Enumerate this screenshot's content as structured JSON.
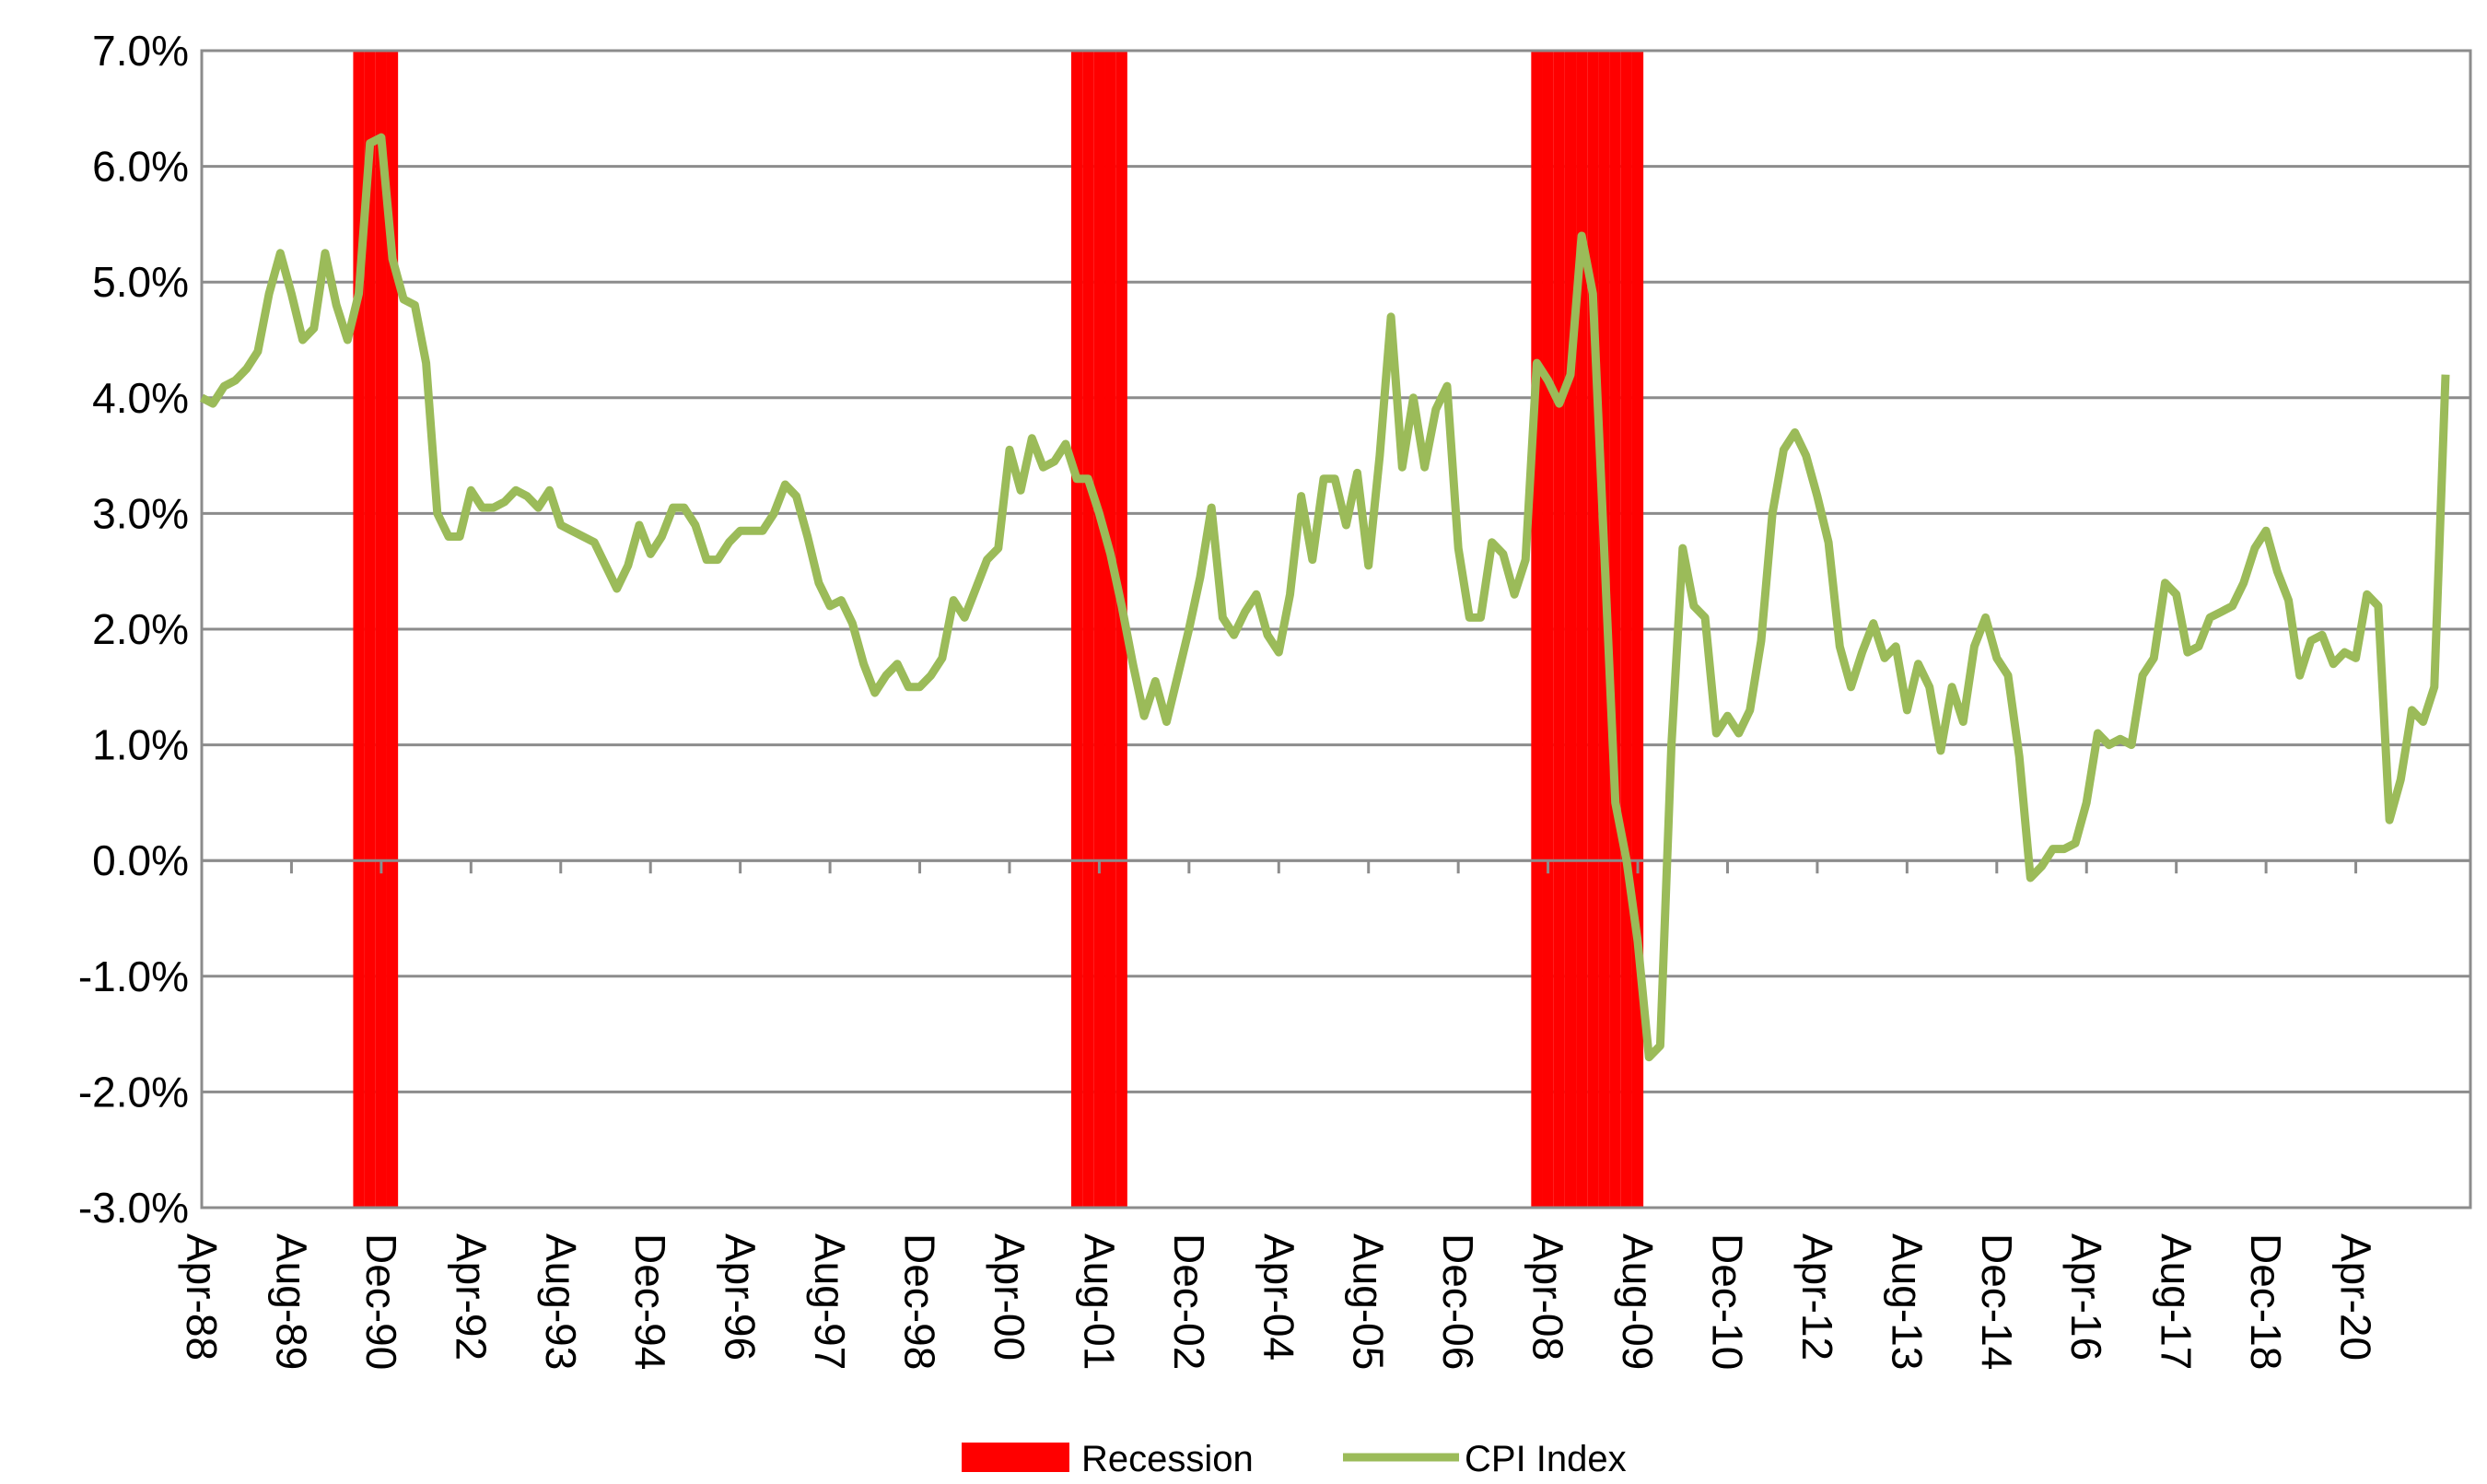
{
  "chart_data": {
    "type": "line",
    "categories": [
      "Apr-88",
      null,
      null,
      null,
      null,
      null,
      null,
      null,
      "Aug-89",
      null,
      null,
      null,
      null,
      null,
      null,
      null,
      "Dec-90",
      null,
      null,
      null,
      null,
      null,
      null,
      null,
      "Apr-92",
      null,
      null,
      null,
      null,
      null,
      null,
      null,
      "Aug-93",
      null,
      null,
      null,
      null,
      null,
      null,
      null,
      "Dec-94",
      null,
      null,
      null,
      null,
      null,
      null,
      null,
      "Apr-96",
      null,
      null,
      null,
      null,
      null,
      null,
      null,
      "Aug-97",
      null,
      null,
      null,
      null,
      null,
      null,
      null,
      "Dec-98",
      null,
      null,
      null,
      null,
      null,
      null,
      null,
      "Apr-00",
      null,
      null,
      null,
      null,
      null,
      null,
      null,
      "Aug-01",
      null,
      null,
      null,
      null,
      null,
      null,
      null,
      "Dec-02",
      null,
      null,
      null,
      null,
      null,
      null,
      null,
      "Apr-04",
      null,
      null,
      null,
      null,
      null,
      null,
      null,
      "Aug-05",
      null,
      null,
      null,
      null,
      null,
      null,
      null,
      "Dec-06",
      null,
      null,
      null,
      null,
      null,
      null,
      null,
      "Apr-08",
      null,
      null,
      null,
      null,
      null,
      null,
      null,
      "Aug-09",
      null,
      null,
      null,
      null,
      null,
      null,
      null,
      "Dec-10",
      null,
      null,
      null,
      null,
      null,
      null,
      null,
      "Apr-12",
      null,
      null,
      null,
      null,
      null,
      null,
      null,
      "Aug-13",
      null,
      null,
      null,
      null,
      null,
      null,
      null,
      "Dec-14",
      null,
      null,
      null,
      null,
      null,
      null,
      null,
      "Apr-16",
      null,
      null,
      null,
      null,
      null,
      null,
      null,
      "Aug-17",
      null,
      null,
      null,
      null,
      null,
      null,
      null,
      "Dec-18",
      null,
      null,
      null,
      null,
      null,
      null,
      null,
      "Apr-20",
      null,
      null,
      null,
      null,
      null,
      null,
      null,
      null
    ],
    "series": [
      {
        "name": "Recession",
        "type": "bar",
        "axis": "y2",
        "color": "#ff0000",
        "values": [
          0,
          0,
          0,
          0,
          0,
          0,
          0,
          0,
          0,
          0,
          0,
          0,
          0,
          0,
          1,
          1,
          1,
          1,
          0,
          0,
          0,
          0,
          0,
          0,
          0,
          0,
          0,
          0,
          0,
          0,
          0,
          0,
          0,
          0,
          0,
          0,
          0,
          0,
          0,
          0,
          0,
          0,
          0,
          0,
          0,
          0,
          0,
          0,
          0,
          0,
          0,
          0,
          0,
          0,
          0,
          0,
          0,
          0,
          0,
          0,
          0,
          0,
          0,
          0,
          0,
          0,
          0,
          0,
          0,
          0,
          0,
          0,
          0,
          0,
          0,
          0,
          0,
          0,
          1,
          1,
          1,
          1,
          1,
          0,
          0,
          0,
          0,
          0,
          0,
          0,
          0,
          0,
          0,
          0,
          0,
          0,
          0,
          0,
          0,
          0,
          0,
          0,
          0,
          0,
          0,
          0,
          0,
          0,
          0,
          0,
          0,
          0,
          0,
          0,
          0,
          0,
          0,
          0,
          0,
          1,
          1,
          1,
          1,
          1,
          1,
          1,
          1,
          1,
          1,
          0,
          0,
          0,
          0,
          0,
          0,
          0,
          0,
          0,
          0,
          0,
          0,
          0,
          0,
          0,
          0,
          0,
          0,
          0,
          0,
          0,
          0,
          0,
          0,
          0,
          0,
          0,
          0,
          0,
          0,
          0,
          0,
          0,
          0,
          0,
          0,
          0,
          0,
          0,
          0,
          0,
          0,
          0,
          0,
          0,
          0,
          0,
          0,
          0,
          0,
          0,
          0,
          0,
          0,
          0,
          0,
          0,
          0,
          0,
          0,
          0,
          0,
          0,
          0,
          0,
          0,
          0,
          0,
          0,
          0,
          0,
          0
        ]
      },
      {
        "name": "CPI Index",
        "type": "line",
        "color": "#9bbb59",
        "values": [
          4.0,
          3.95,
          4.1,
          4.15,
          4.25,
          4.4,
          4.9,
          5.25,
          4.9,
          4.5,
          4.6,
          5.25,
          4.8,
          4.5,
          4.9,
          6.2,
          6.25,
          5.2,
          4.85,
          4.8,
          4.3,
          3.0,
          2.8,
          2.8,
          3.2,
          3.05,
          3.05,
          3.1,
          3.2,
          3.15,
          3.05,
          3.2,
          2.9,
          2.85,
          2.8,
          2.75,
          2.55,
          2.35,
          2.55,
          2.9,
          2.65,
          2.8,
          3.05,
          3.05,
          2.9,
          2.6,
          2.6,
          2.75,
          2.85,
          2.85,
          2.85,
          3.0,
          3.25,
          3.15,
          2.8,
          2.4,
          2.2,
          2.25,
          2.05,
          1.7,
          1.45,
          1.6,
          1.7,
          1.5,
          1.5,
          1.6,
          1.75,
          2.25,
          2.1,
          2.35,
          2.6,
          2.7,
          3.55,
          3.2,
          3.65,
          3.4,
          3.45,
          3.6,
          3.3,
          3.3,
          3.0,
          2.65,
          2.2,
          1.7,
          1.25,
          1.55,
          1.2,
          1.6,
          2.0,
          2.45,
          3.05,
          2.1,
          1.95,
          2.15,
          2.3,
          1.95,
          1.8,
          2.3,
          3.15,
          2.6,
          3.3,
          3.3,
          2.9,
          3.35,
          2.55,
          3.5,
          4.7,
          3.4,
          4.0,
          3.4,
          3.9,
          4.1,
          2.7,
          2.1,
          2.1,
          2.75,
          2.65,
          2.3,
          2.6,
          4.3,
          4.15,
          3.95,
          4.2,
          5.4,
          4.9,
          2.7,
          0.5,
          0.0,
          -0.7,
          -1.7,
          -1.6,
          1.0,
          2.7,
          2.2,
          2.1,
          1.1,
          1.25,
          1.1,
          1.3,
          1.9,
          3.0,
          3.55,
          3.7,
          3.5,
          3.15,
          2.75,
          1.85,
          1.5,
          1.8,
          2.05,
          1.75,
          1.85,
          1.3,
          1.7,
          1.5,
          0.95,
          1.5,
          1.2,
          1.85,
          2.1,
          1.75,
          1.6,
          0.9,
          -0.15,
          -0.05,
          0.1,
          0.1,
          0.15,
          0.5,
          1.1,
          1.0,
          1.05,
          1.0,
          1.6,
          1.75,
          2.4,
          2.3,
          1.8,
          1.85,
          2.1,
          2.15,
          2.2,
          2.4,
          2.7,
          2.85,
          2.5,
          2.25,
          1.6,
          1.9,
          1.95,
          1.7,
          1.8,
          1.75,
          2.3,
          2.2,
          0.35,
          0.7,
          1.3,
          1.2,
          1.5,
          4.2
        ]
      }
    ],
    "ylim": [
      -3,
      7
    ],
    "yticks": [
      {
        "value": -3,
        "label": "-3.0%"
      },
      {
        "value": -2,
        "label": "-2.0%"
      },
      {
        "value": -1,
        "label": "-1.0%"
      },
      {
        "value": 0,
        "label": "0.0%"
      },
      {
        "value": 1,
        "label": "1.0%"
      },
      {
        "value": 2,
        "label": "2.0%"
      },
      {
        "value": 3,
        "label": "3.0%"
      },
      {
        "value": 4,
        "label": "4.0%"
      },
      {
        "value": 5,
        "label": "5.0%"
      },
      {
        "value": 6,
        "label": "6.0%"
      },
      {
        "value": 7,
        "label": "7.0%"
      }
    ],
    "y2lim": [
      0,
      1
    ],
    "grid": true,
    "legend": "bottom"
  }
}
